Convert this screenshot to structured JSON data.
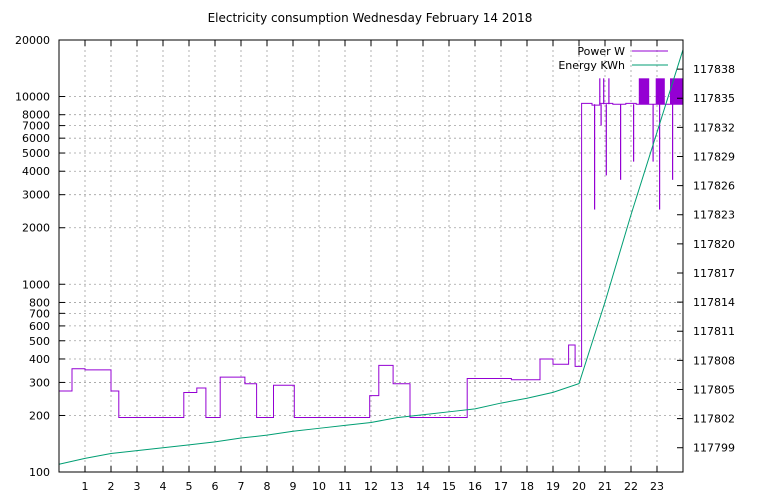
{
  "chart_data": {
    "type": "line",
    "title": "Electricity consumption Wednesday February 14 2018",
    "xlim": [
      0,
      24
    ],
    "x_ticks": [
      1,
      2,
      3,
      4,
      5,
      6,
      7,
      8,
      9,
      10,
      11,
      12,
      13,
      14,
      15,
      16,
      17,
      18,
      19,
      20,
      21,
      22,
      23
    ],
    "y_left": {
      "scale": "log",
      "lim": [
        100,
        20000
      ],
      "ticks": [
        100,
        200,
        300,
        400,
        500,
        600,
        700,
        800,
        1000,
        2000,
        3000,
        4000,
        5000,
        6000,
        7000,
        8000,
        10000,
        20000
      ]
    },
    "y_right": {
      "scale": "linear",
      "lim": [
        117796.5,
        117841
      ],
      "ticks": [
        117799,
        117802,
        117805,
        117808,
        117811,
        117814,
        117817,
        117820,
        117823,
        117826,
        117829,
        117832,
        117835,
        117838
      ]
    },
    "grid": true,
    "legend_position": "top-right",
    "series": [
      {
        "name": "Power W",
        "color": "#9400d3",
        "axis": "left",
        "steps": [
          [
            0,
            270
          ],
          [
            0.5,
            355
          ],
          [
            1.0,
            350
          ],
          [
            2.0,
            270
          ],
          [
            2.3,
            195
          ],
          [
            4.8,
            265
          ],
          [
            5.3,
            280
          ],
          [
            5.65,
            195
          ],
          [
            6.2,
            320
          ],
          [
            7.15,
            295
          ],
          [
            7.6,
            195
          ],
          [
            8.25,
            290
          ],
          [
            9.05,
            195
          ],
          [
            11.95,
            255
          ],
          [
            12.3,
            370
          ],
          [
            12.85,
            295
          ],
          [
            13.5,
            195
          ],
          [
            15.7,
            315
          ],
          [
            17.4,
            310
          ],
          [
            18.5,
            400
          ],
          [
            19.0,
            375
          ],
          [
            19.6,
            475
          ],
          [
            19.85,
            365
          ],
          [
            20.1,
            9200
          ],
          [
            20.5,
            9000
          ],
          [
            20.8,
            9200
          ],
          [
            21.3,
            9100
          ],
          [
            21.8,
            9200
          ],
          [
            22.2,
            9100
          ],
          [
            24,
            9100
          ]
        ],
        "spikes_up": [
          20.8,
          20.95,
          21.15
        ],
        "spikes_down": [
          [
            20.6,
            2500
          ],
          [
            20.85,
            7000
          ],
          [
            21.05,
            3800
          ],
          [
            21.6,
            3600
          ],
          [
            22.1,
            4500
          ],
          [
            22.85,
            4500
          ],
          [
            23.1,
            2500
          ],
          [
            23.6,
            3600
          ]
        ],
        "blocks": [
          [
            22.3,
            22.7
          ],
          [
            22.95,
            23.3
          ],
          [
            23.5,
            24
          ]
        ],
        "spike_top": 12500
      },
      {
        "name": "Energy KWh",
        "color": "#009e73",
        "axis": "right",
        "points": [
          [
            0,
            117797.3
          ],
          [
            1,
            117797.9
          ],
          [
            2,
            117798.4
          ],
          [
            3,
            117798.7
          ],
          [
            4,
            117799.0
          ],
          [
            5,
            117799.3
          ],
          [
            6,
            117799.6
          ],
          [
            7,
            117800.0
          ],
          [
            8,
            117800.3
          ],
          [
            9,
            117800.7
          ],
          [
            10,
            117801.0
          ],
          [
            11,
            117801.3
          ],
          [
            12,
            117801.6
          ],
          [
            13,
            117802.1
          ],
          [
            14,
            117802.4
          ],
          [
            15,
            117802.7
          ],
          [
            16,
            117803.0
          ],
          [
            17,
            117803.6
          ],
          [
            18,
            117804.1
          ],
          [
            19,
            117804.7
          ],
          [
            20,
            117805.6
          ],
          [
            21,
            117814.0
          ],
          [
            22,
            117823.0
          ],
          [
            23,
            117831.5
          ],
          [
            24,
            117840.0
          ]
        ]
      }
    ]
  }
}
